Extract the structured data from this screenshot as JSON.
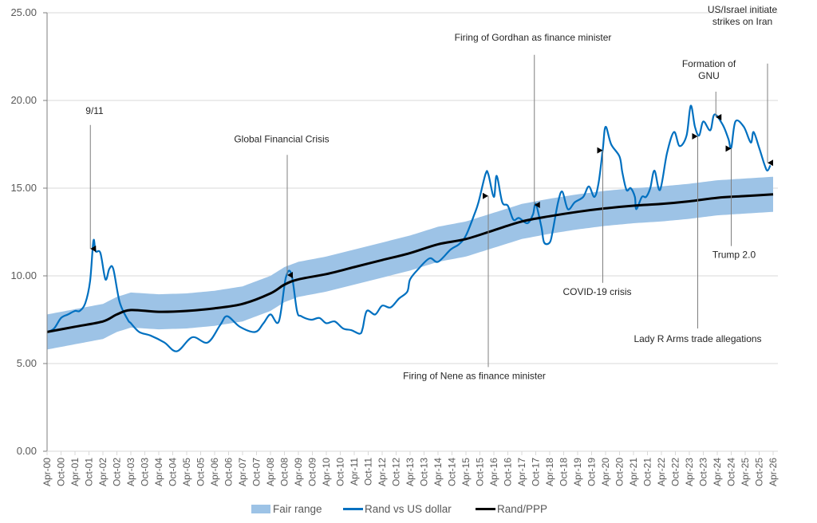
{
  "chart_data": {
    "type": "line",
    "title": "",
    "xlabel": "",
    "ylabel": "",
    "ylim": [
      0,
      25
    ],
    "yticks": [
      "0.00",
      "5.00",
      "10.00",
      "15.00",
      "20.00",
      "25.00"
    ],
    "ytick_values": [
      0,
      5,
      10,
      15,
      20,
      25
    ],
    "grid": true,
    "x_unit": "years since Apr-2000",
    "xlim": [
      0,
      26
    ],
    "xtick_labels": [
      "Apr-00",
      "Oct-00",
      "Apr-01",
      "Oct-01",
      "Apr-02",
      "Oct-02",
      "Apr-03",
      "Oct-03",
      "Apr-04",
      "Oct-04",
      "Apr-05",
      "Oct-05",
      "Apr-06",
      "Oct-06",
      "Apr-07",
      "Oct-07",
      "Apr-08",
      "Oct-08",
      "Apr-09",
      "Oct-09",
      "Apr-10",
      "Oct-10",
      "Apr-11",
      "Oct-11",
      "Apr-12",
      "Oct-12",
      "Apr-13",
      "Oct-13",
      "Apr-14",
      "Oct-14",
      "Apr-15",
      "Oct-15",
      "Apr-16",
      "Oct-16",
      "Apr-17",
      "Oct-17",
      "Apr-18",
      "Oct-18",
      "Apr-19",
      "Oct-19",
      "Apr-20",
      "Oct-20",
      "Apr-21",
      "Oct-21",
      "Apr-22",
      "Oct-22",
      "Apr-23",
      "Oct-23",
      "Apr-24",
      "Oct-24",
      "Apr-25",
      "Oct-25",
      "Apr-26"
    ],
    "legend_position": "bottom",
    "legend": [
      "Fair range",
      "Rand vs US dollar",
      "Rand/PPP"
    ],
    "colors": {
      "fair_range": "#9dc3e6",
      "rand_usd": "#0070c0",
      "ppp": "#000000"
    },
    "series": [
      {
        "name": "Rand vs US dollar",
        "x": [
          0,
          0.25,
          0.5,
          0.75,
          1.0,
          1.17,
          1.37,
          1.54,
          1.66,
          1.74,
          1.91,
          2.09,
          2.23,
          2.37,
          2.6,
          2.89,
          3.0,
          3.3,
          3.7,
          4.2,
          4.65,
          5.2,
          5.75,
          6.2,
          6.45,
          6.9,
          7.45,
          7.75,
          8.0,
          8.3,
          8.55,
          8.75,
          8.95,
          9.1,
          9.45,
          9.75,
          10.0,
          10.3,
          10.6,
          10.9,
          11.2,
          11.3,
          11.45,
          11.75,
          12.0,
          12.3,
          12.6,
          12.9,
          13.0,
          13.3,
          13.7,
          14.0,
          14.45,
          14.75,
          15.0,
          15.3,
          15.45,
          15.7,
          15.8,
          16.0,
          16.1,
          16.3,
          16.5,
          16.7,
          16.9,
          17.2,
          17.4,
          17.5,
          17.7,
          17.8,
          18.0,
          18.1,
          18.3,
          18.45,
          18.65,
          18.9,
          19.2,
          19.4,
          19.6,
          19.75,
          19.9,
          20.0,
          20.2,
          20.5,
          20.6,
          20.75,
          20.9,
          21.05,
          21.1,
          21.3,
          21.45,
          21.6,
          21.75,
          21.95,
          22.2,
          22.45,
          22.65,
          22.9,
          23.05,
          23.2,
          23.35,
          23.5,
          23.75,
          23.9,
          24.2,
          24.4,
          24.5,
          24.65,
          24.95,
          25.2,
          25.3,
          25.5,
          25.7,
          25.8,
          25.9
        ],
        "values": [
          6.8,
          7.0,
          7.6,
          7.8,
          8.0,
          8.0,
          8.45,
          9.7,
          12.0,
          11.4,
          11.3,
          9.8,
          10.4,
          10.4,
          8.5,
          7.5,
          7.3,
          6.8,
          6.6,
          6.2,
          5.7,
          6.5,
          6.2,
          7.2,
          7.7,
          7.1,
          6.8,
          7.3,
          7.8,
          7.4,
          9.9,
          10.1,
          8.0,
          7.7,
          7.5,
          7.6,
          7.3,
          7.4,
          7.0,
          6.9,
          6.7,
          7.0,
          8.0,
          7.8,
          8.3,
          8.2,
          8.7,
          9.1,
          9.8,
          10.4,
          11.0,
          10.8,
          11.5,
          11.8,
          12.3,
          13.5,
          14.2,
          15.8,
          15.8,
          14.5,
          15.7,
          14.2,
          14.0,
          13.2,
          13.3,
          13.0,
          13.5,
          14.1,
          12.8,
          11.9,
          11.9,
          12.5,
          14.2,
          14.8,
          13.8,
          14.2,
          14.5,
          15.1,
          14.5,
          15.3,
          17.2,
          18.5,
          17.5,
          16.8,
          15.9,
          14.9,
          15.0,
          14.5,
          13.8,
          14.5,
          14.5,
          15.0,
          16.0,
          14.9,
          17.0,
          18.2,
          17.4,
          18.0,
          19.7,
          18.5,
          18.0,
          18.8,
          18.3,
          19.2,
          18.6,
          17.8,
          17.3,
          18.8,
          18.5,
          17.6,
          18.2,
          17.3,
          16.3,
          16.0,
          16.3
        ]
      },
      {
        "name": "Rand/PPP",
        "x": [
          0,
          1,
          2,
          2.5,
          3,
          4,
          5,
          6,
          7,
          8,
          8.5,
          9,
          10,
          11,
          12,
          13,
          14,
          15,
          16,
          17,
          18,
          19,
          20,
          21,
          22,
          23,
          24,
          25,
          26
        ],
        "values": [
          6.8,
          7.1,
          7.4,
          7.8,
          8.05,
          7.95,
          8.0,
          8.15,
          8.4,
          9.0,
          9.5,
          9.8,
          10.1,
          10.5,
          10.9,
          11.3,
          11.8,
          12.1,
          12.6,
          13.1,
          13.4,
          13.65,
          13.85,
          14.0,
          14.1,
          14.25,
          14.45,
          14.55,
          14.65
        ]
      },
      {
        "name": "Fair range",
        "band_halfwidth": 1.0
      }
    ],
    "annotations": [
      {
        "text": [
          "9/11"
        ],
        "x": 1.55,
        "y": 11.5,
        "label_x": 1.7,
        "label_y": 19.4,
        "tail_y": 18.6,
        "dir": "down"
      },
      {
        "text": [
          "Global Financial Crisis"
        ],
        "x": 8.6,
        "y": 10.0,
        "label_x": 8.4,
        "label_y": 17.8,
        "tail_y": 16.9,
        "dir": "down"
      },
      {
        "text": [
          "Firing of Gordhan as finance minister"
        ],
        "x": 17.45,
        "y": 14.0,
        "label_x": 17.4,
        "label_y": 23.6,
        "tail_y": 22.6,
        "dir": "down"
      },
      {
        "text": [
          "US/Israel initiate",
          "strikes on Iran"
        ],
        "x": 25.8,
        "y": 16.4,
        "label_x": 24.9,
        "label_y": 24.5,
        "tail_y": 22.1,
        "dir": "down"
      },
      {
        "text": [
          "Formation of",
          "GNU"
        ],
        "x": 23.95,
        "y": 19.0,
        "label_x": 23.7,
        "label_y": 21.4,
        "tail_y": 20.5,
        "dir": "down"
      },
      {
        "text": [
          "Firing of Nene as finance minister"
        ],
        "x": 15.8,
        "y": 14.6,
        "label_x": 15.3,
        "label_y": 4.3,
        "tail_y": 4.8,
        "dir": "up"
      },
      {
        "text": [
          "COVID-19 crisis"
        ],
        "x": 19.9,
        "y": 17.2,
        "label_x": 19.7,
        "label_y": 9.1,
        "tail_y": 9.6,
        "dir": "up"
      },
      {
        "text": [
          "Lady R Arms trade allegations"
        ],
        "x": 23.3,
        "y": 18.0,
        "label_x": 23.3,
        "label_y": 6.4,
        "tail_y": 7.0,
        "dir": "up"
      },
      {
        "text": [
          "Trump 2.0"
        ],
        "x": 24.5,
        "y": 17.3,
        "label_x": 24.6,
        "label_y": 11.2,
        "tail_y": 11.7,
        "dir": "up"
      }
    ]
  }
}
